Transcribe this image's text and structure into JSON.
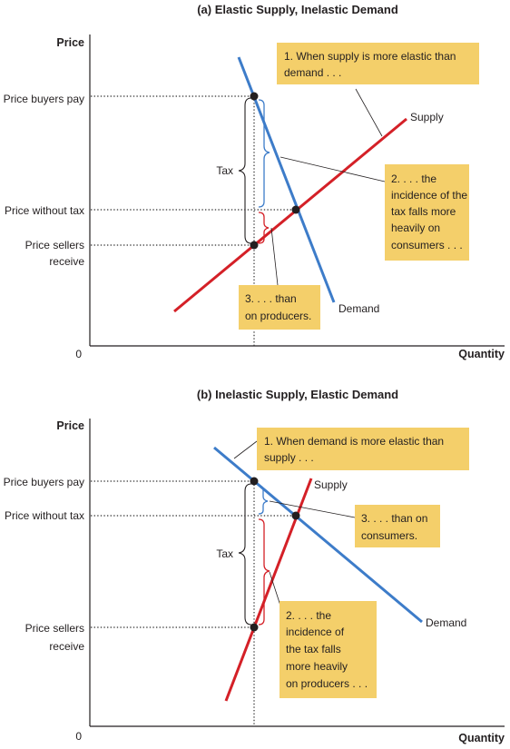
{
  "panel_a": {
    "title": "(a) Elastic Supply, Inelastic Demand",
    "y_axis_label": "Price",
    "x_axis_label": "Quantity",
    "origin_label": "0",
    "price_buyers_pay": "Price buyers pay",
    "price_without_tax": "Price without tax",
    "price_sellers_receive_1": "Price sellers",
    "price_sellers_receive_2": "receive",
    "tax_label": "Tax",
    "supply_label": "Supply",
    "demand_label": "Demand",
    "note1_line1": "1. When supply is more elastic than",
    "note1_line2": "demand . . .",
    "note2_line1": "2. . . . the",
    "note2_line2": "incidence of the",
    "note2_line3": "tax falls more",
    "note2_line4": "heavily on",
    "note2_line5": "consumers . . .",
    "note3_line1": "3. . . . than",
    "note3_line2": "on producers."
  },
  "panel_b": {
    "title": "(b) Inelastic Supply, Elastic Demand",
    "y_axis_label": "Price",
    "x_axis_label": "Quantity",
    "origin_label": "0",
    "price_buyers_pay": "Price buyers pay",
    "price_without_tax": "Price without tax",
    "price_sellers_receive_1": "Price sellers",
    "price_sellers_receive_2": "receive",
    "tax_label": "Tax",
    "supply_label": "Supply",
    "demand_label": "Demand",
    "note1_line1": "1. When demand is more elastic than",
    "note1_line2": "supply . . .",
    "note2_line1": "2. . . . the",
    "note2_line2": "incidence of",
    "note2_line3": "the tax falls",
    "note2_line4": "more heavily",
    "note2_line5": "on producers . . .",
    "note3_line1": "3. . . . than on",
    "note3_line2": "consumers."
  },
  "colors": {
    "supply": "#d42027",
    "demand": "#3d7cc9",
    "annotation_box": "#f4cf6a",
    "axis": "#231f20"
  }
}
